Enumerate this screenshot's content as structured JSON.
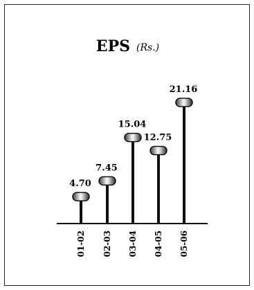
{
  "chart_data": {
    "type": "bar",
    "title": "EPS",
    "unit": "(Rs.)",
    "categories": [
      "01-02",
      "02-03",
      "03-04",
      "04-05",
      "05-06"
    ],
    "values": [
      4.7,
      7.45,
      15.04,
      12.75,
      21.16
    ],
    "value_labels": [
      "4.70",
      "7.45",
      "15.04",
      "12.75",
      "21.16"
    ],
    "ylim": [
      0,
      25
    ],
    "grid": false,
    "legend": "none",
    "colors": {
      "stem": "#111111",
      "knob_dark": "#2a2a2a",
      "knob_light": "#f2f2f2"
    }
  }
}
